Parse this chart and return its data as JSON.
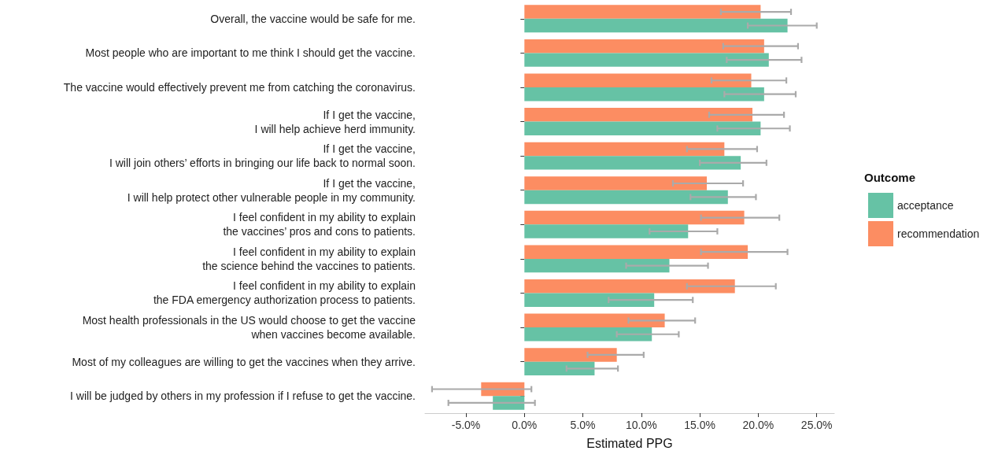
{
  "chart_data": {
    "type": "bar",
    "orientation": "horizontal",
    "xlabel": "Estimated PPG",
    "legend_title": "Outcome",
    "legend": "right",
    "grid": false,
    "categories": [
      "Overall, the vaccine would be safe for me.",
      "Most people who are important to me think I should get the vaccine.",
      "The vaccine would effectively prevent me from catching the coronavirus.",
      "If I get the vaccine,\nI will help achieve herd immunity.",
      "If I get the vaccine,\nI will join others’ efforts in bringing our life back to normal soon.",
      "If I get the vaccine,\nI will help protect other vulnerable people in my community.",
      "I feel confident in my ability to explain\nthe vaccines’ pros and cons to patients.",
      "I feel confident in my ability to explain\nthe science behind the vaccines to patients.",
      "I feel confident in my ability to explain\nthe FDA emergency authorization process to patients.",
      "Most health professionals in the US would choose to get the vaccine\nwhen vaccines become available.",
      "Most of my colleagues are willing to get the vaccines when they arrive.",
      "I will be judged by others in my profession if I refuse to get the vaccine."
    ],
    "xlim": [
      -8.5,
      26.5
    ],
    "xticks": [
      {
        "value": -5,
        "label": "-5.0%"
      },
      {
        "value": 0,
        "label": "0.0%"
      },
      {
        "value": 5,
        "label": "5.0%"
      },
      {
        "value": 10,
        "label": "10.0%"
      },
      {
        "value": 15,
        "label": "15.0%"
      },
      {
        "value": 20,
        "label": "20.0%"
      },
      {
        "value": 25,
        "label": "25.0%"
      }
    ],
    "series": [
      {
        "name": "acceptance",
        "color": "#66c2a5",
        "values": [
          22.5,
          20.9,
          20.5,
          20.2,
          18.5,
          17.4,
          14.0,
          12.4,
          11.1,
          10.9,
          6.0,
          -2.7
        ],
        "errors": [
          [
            19.1,
            25.0
          ],
          [
            17.3,
            23.7
          ],
          [
            17.1,
            23.2
          ],
          [
            16.5,
            22.7
          ],
          [
            15.0,
            20.7
          ],
          [
            14.2,
            19.8
          ],
          [
            10.7,
            16.5
          ],
          [
            8.7,
            15.7
          ],
          [
            7.2,
            14.4
          ],
          [
            7.9,
            13.2
          ],
          [
            3.6,
            8.0
          ],
          [
            -6.5,
            0.9
          ]
        ]
      },
      {
        "name": "recommendation",
        "color": "#fc8d62",
        "values": [
          20.2,
          20.5,
          19.4,
          19.5,
          17.1,
          15.6,
          18.8,
          19.1,
          18.0,
          12.0,
          7.9,
          -3.7
        ],
        "errors": [
          [
            16.8,
            22.8
          ],
          [
            17.0,
            23.4
          ],
          [
            16.0,
            22.4
          ],
          [
            15.8,
            22.2
          ],
          [
            13.9,
            19.9
          ],
          [
            12.7,
            18.7
          ],
          [
            15.1,
            21.8
          ],
          [
            15.1,
            22.5
          ],
          [
            13.9,
            21.5
          ],
          [
            8.9,
            14.6
          ],
          [
            5.4,
            10.2
          ],
          [
            -7.9,
            0.6
          ]
        ]
      }
    ]
  }
}
